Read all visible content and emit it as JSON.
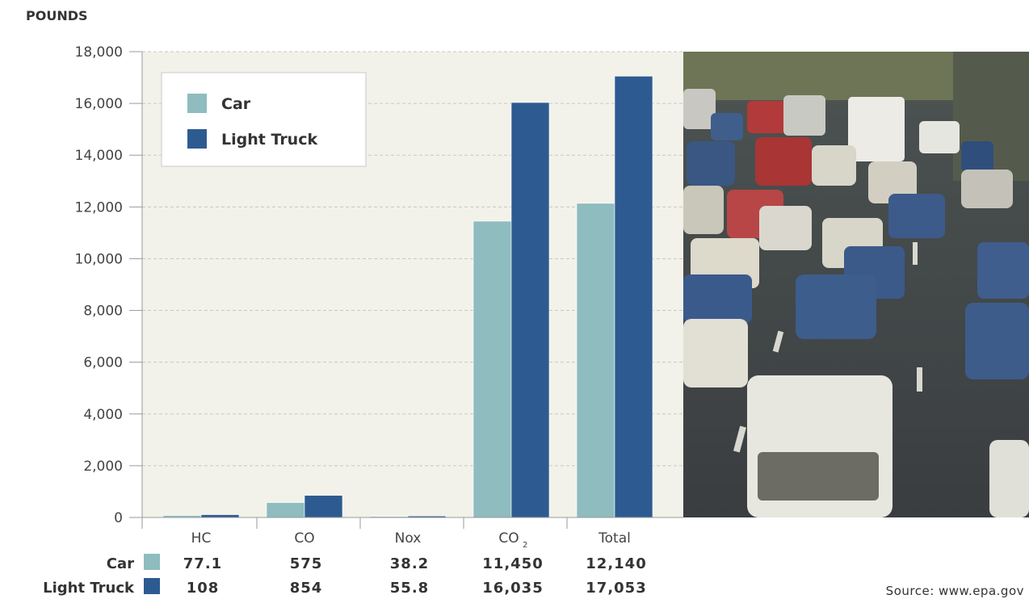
{
  "chart_data": {
    "type": "bar",
    "ylabel": "POUNDS",
    "ylim": [
      0,
      18000
    ],
    "yticks": [
      0,
      2000,
      4000,
      6000,
      8000,
      10000,
      12000,
      14000,
      16000,
      18000
    ],
    "ytick_labels": [
      "0",
      "2,000",
      "4,000",
      "6,000",
      "8,000",
      "10,000",
      "12,000",
      "14,000",
      "16,000",
      "18,000"
    ],
    "categories": [
      "HC",
      "CO",
      "Nox",
      "CO",
      "Total"
    ],
    "category_subscripts": [
      "",
      "",
      "",
      "2",
      ""
    ],
    "series": [
      {
        "name": "Car",
        "color": "#8ebcbf",
        "values": [
          77.1,
          575,
          38.2,
          11450,
          12140
        ],
        "value_labels": [
          "77.1",
          "575",
          "38.2",
          "11,450",
          "12,140"
        ]
      },
      {
        "name": "Light Truck",
        "color": "#2d5b91",
        "values": [
          108,
          854,
          55.8,
          16035,
          17053
        ],
        "value_labels": [
          "108",
          "854",
          "55.8",
          "16,035",
          "17,053"
        ]
      }
    ],
    "grid": true,
    "legend_position": "top-left"
  },
  "source": "Source: www.epa.gov",
  "photo": {
    "subject": "traffic-photo"
  }
}
